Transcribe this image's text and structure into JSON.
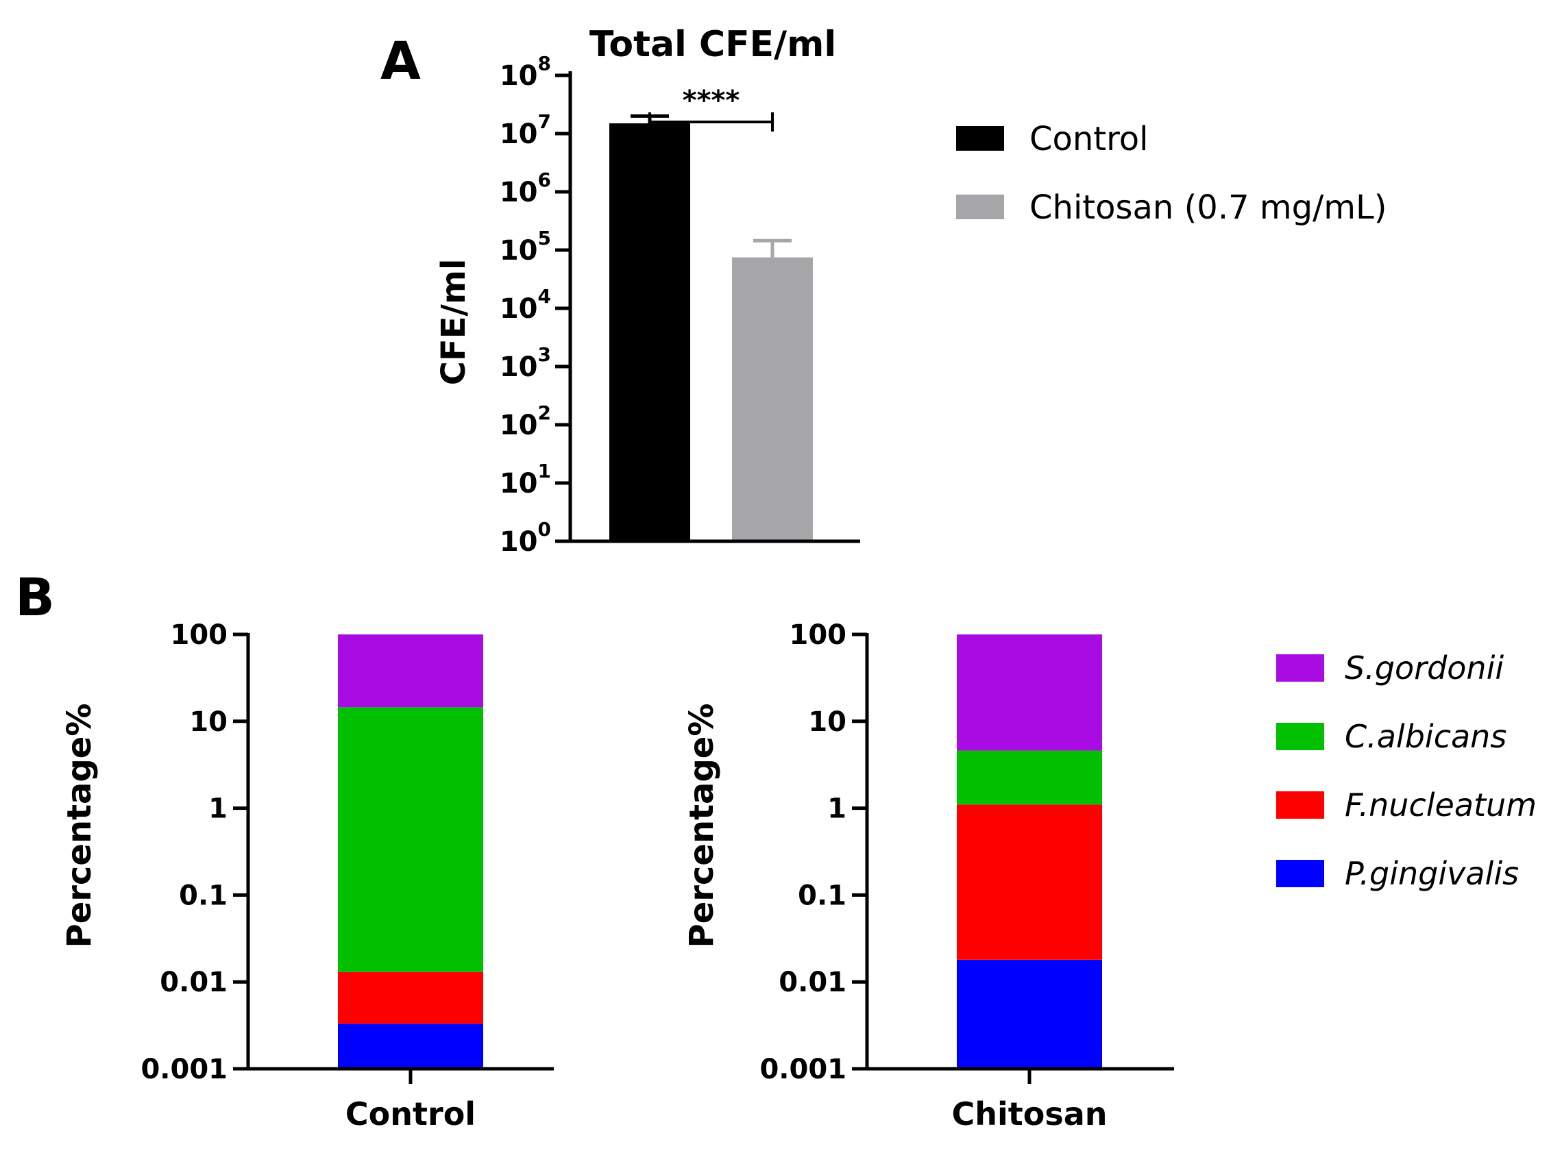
{
  "chart_data": [
    {
      "id": "A",
      "panel": "A",
      "type": "bar",
      "scale": "log",
      "title": "Total CFE/ml",
      "ylabel": "CFE/ml",
      "xlabel": "",
      "ylim": [
        1,
        100000000
      ],
      "ytick_exponents": [
        "0",
        "1",
        "2",
        "3",
        "4",
        "5",
        "6",
        "7",
        "8"
      ],
      "categories": [
        "Control",
        "Chitosan (0.7 mg/mL)"
      ],
      "values": [
        15000000,
        75000
      ],
      "error_upper": [
        20000000,
        145000
      ],
      "colors": [
        "#000000",
        "#a6a6a8"
      ],
      "significance": "****",
      "legend": [
        {
          "label": "Control",
          "color": "#000000"
        },
        {
          "label": "Chitosan (0.7 mg/mL)",
          "color": "#a6a6a8"
        }
      ]
    },
    {
      "id": "B1",
      "panel": "B",
      "type": "bar",
      "stacked": true,
      "scale": "log",
      "ylabel": "Percentage%",
      "ylim": [
        0.001,
        100
      ],
      "ytick_labels": [
        "0.001",
        "0.01",
        "0.1",
        "1",
        "10",
        "100"
      ],
      "category": "Control",
      "segments": [
        {
          "name": "P.gingivalis",
          "from": 0.001,
          "to": 0.0033,
          "color": "#0000ff"
        },
        {
          "name": "F.nucleatum",
          "from": 0.0033,
          "to": 0.013,
          "color": "#ff0000"
        },
        {
          "name": "C.albicans",
          "from": 0.013,
          "to": 14.5,
          "color": "#00c000"
        },
        {
          "name": "S.gordonii",
          "from": 14.5,
          "to": 100,
          "color": "#a80ce3"
        }
      ]
    },
    {
      "id": "B2",
      "panel": "B",
      "type": "bar",
      "stacked": true,
      "scale": "log",
      "ylabel": "Percentage%",
      "ylim": [
        0.001,
        100
      ],
      "ytick_labels": [
        "0.001",
        "0.01",
        "0.1",
        "1",
        "10",
        "100"
      ],
      "category": "Chitosan",
      "segments": [
        {
          "name": "P.gingivalis",
          "from": 0.001,
          "to": 0.018,
          "color": "#0000ff"
        },
        {
          "name": "F.nucleatum",
          "from": 0.018,
          "to": 1.1,
          "color": "#ff0000"
        },
        {
          "name": "C.albicans",
          "from": 1.1,
          "to": 4.6,
          "color": "#00c000"
        },
        {
          "name": "S.gordonii",
          "from": 4.6,
          "to": 100,
          "color": "#a80ce3"
        }
      ]
    }
  ],
  "legend_b": [
    {
      "label": "S.gordonii",
      "color": "#a80ce3"
    },
    {
      "label": "C.albicans",
      "color": "#00c000"
    },
    {
      "label": "F.nucleatum",
      "color": "#ff0000"
    },
    {
      "label": "P.gingivalis",
      "color": "#0000ff"
    }
  ]
}
